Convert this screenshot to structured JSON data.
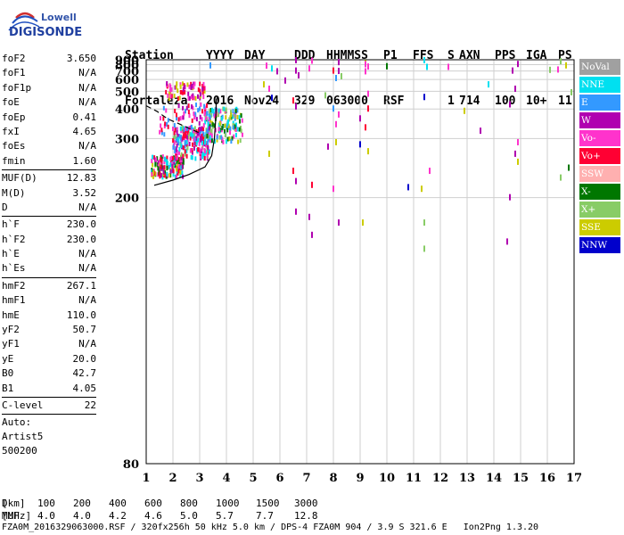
{
  "logo": {
    "line1": "Lowell",
    "line2": "DIGISONDE"
  },
  "header": {
    "row1": [
      "Station",
      "YYYY",
      "DAY",
      "DDD",
      "HHMMSS",
      "P1",
      "FFS",
      "S",
      "AXN",
      "PPS",
      "IGA",
      "PS"
    ],
    "row2": [
      "Fortaleza",
      "2016",
      "Nov24",
      "329",
      "063000",
      "RSF",
      "",
      "1",
      "714",
      "100",
      "10+",
      "11"
    ]
  },
  "params": [
    {
      "label": "foF2",
      "value": "3.650"
    },
    {
      "label": "foF1",
      "value": "N/A"
    },
    {
      "label": "foF1p",
      "value": "N/A"
    },
    {
      "label": "foE",
      "value": "N/A"
    },
    {
      "label": "foEp",
      "value": "0.41"
    },
    {
      "label": "fxI",
      "value": "4.65"
    },
    {
      "label": "foEs",
      "value": "N/A"
    },
    {
      "label": "fmin",
      "value": "1.60"
    },
    {
      "label": "MUF(D)",
      "value": "12.83",
      "sep": true
    },
    {
      "label": "M(D)",
      "value": "3.52"
    },
    {
      "label": "D",
      "value": "N/A"
    },
    {
      "label": "h`F",
      "value": "230.0",
      "sep": true
    },
    {
      "label": "h`F2",
      "value": "230.0"
    },
    {
      "label": "h`E",
      "value": "N/A"
    },
    {
      "label": "h`Es",
      "value": "N/A"
    },
    {
      "label": "hmF2",
      "value": "267.1",
      "sep": true
    },
    {
      "label": "hmF1",
      "value": "N/A"
    },
    {
      "label": "hmE",
      "value": "110.0"
    },
    {
      "label": "yF2",
      "value": "50.7"
    },
    {
      "label": "yF1",
      "value": "N/A"
    },
    {
      "label": "yE",
      "value": "20.0"
    },
    {
      "label": "B0",
      "value": "42.7"
    },
    {
      "label": "B1",
      "value": "4.05"
    },
    {
      "label": "C-level",
      "value": "22",
      "sep": true
    }
  ],
  "auto": [
    "Auto:",
    "Artist5",
    "500200"
  ],
  "legend": [
    {
      "label": "NoVal",
      "color": "#a0a0a0"
    },
    {
      "label": "NNE",
      "color": "#00e0f0"
    },
    {
      "label": "E",
      "color": "#3399ff"
    },
    {
      "label": "W",
      "color": "#b000b0"
    },
    {
      "label": "Vo-",
      "color": "#ff33cc"
    },
    {
      "label": "Vo+",
      "color": "#ff0033"
    },
    {
      "label": "SSW",
      "color": "#ffb0b0"
    },
    {
      "label": "X-",
      "color": "#007700"
    },
    {
      "label": "X+",
      "color": "#88cc66"
    },
    {
      "label": "SSE",
      "color": "#cccc00"
    },
    {
      "label": "NNW",
      "color": "#0000cc"
    }
  ],
  "chart_data": {
    "type": "scatter",
    "xlim": [
      1,
      17
    ],
    "ylim": [
      80,
      900
    ],
    "y_scale": "reciprocal",
    "xticks": [
      1,
      2,
      3,
      4,
      5,
      6,
      7,
      8,
      9,
      10,
      11,
      12,
      13,
      14,
      15,
      16,
      17
    ],
    "yticks": [
      80,
      200,
      300,
      400,
      500,
      600,
      700,
      800,
      900
    ],
    "grid": true,
    "traces": [
      {
        "name": "dashed",
        "style": "dashed",
        "points": [
          [
            1.0,
            415
          ],
          [
            1.4,
            390
          ],
          [
            1.8,
            360
          ],
          [
            2.3,
            340
          ],
          [
            2.7,
            325
          ],
          [
            3.0,
            315
          ]
        ]
      },
      {
        "name": "solid",
        "style": "solid",
        "points": [
          [
            1.3,
            215
          ],
          [
            2.0,
            222
          ],
          [
            2.6,
            230
          ],
          [
            3.2,
            242
          ],
          [
            3.45,
            262
          ],
          [
            3.55,
            300
          ],
          [
            3.6,
            360
          ],
          [
            3.62,
            440
          ],
          [
            3.65,
            460
          ]
        ]
      }
    ],
    "scatter_clusters": [
      {
        "x": [
          1.2,
          2.4
        ],
        "y": [
          225,
          260
        ],
        "colors": [
          "#ff0033",
          "#ff33cc",
          "#b000b0",
          "#00e0f0",
          "#007700",
          "#cccc00"
        ],
        "n": 160
      },
      {
        "x": [
          2.0,
          3.4
        ],
        "y": [
          255,
          330
        ],
        "colors": [
          "#ff0033",
          "#ff33cc",
          "#3399ff",
          "#00e0f0",
          "#88cc66",
          "#b000b0"
        ],
        "n": 200
      },
      {
        "x": [
          3.2,
          4.6
        ],
        "y": [
          290,
          400
        ],
        "colors": [
          "#3399ff",
          "#00e0f0",
          "#88cc66",
          "#cccc00",
          "#ff33cc",
          "#007700"
        ],
        "n": 160
      },
      {
        "x": [
          1.7,
          3.2
        ],
        "y": [
          450,
          560
        ],
        "colors": [
          "#ff0033",
          "#ff33cc",
          "#b000b0",
          "#cccc00"
        ],
        "n": 70
      },
      {
        "x": [
          1.5,
          3.4
        ],
        "y": [
          300,
          420
        ],
        "colors": [
          "#ff0033",
          "#ff33cc",
          "#b000b0",
          "#3399ff"
        ],
        "n": 70
      }
    ],
    "scatter_points": [
      {
        "x": 6.6,
        "y": 880,
        "color": "#b000b0"
      },
      {
        "x": 7.2,
        "y": 870,
        "color": "#ff33cc"
      },
      {
        "x": 8.2,
        "y": 840,
        "color": "#b000b0"
      },
      {
        "x": 9.2,
        "y": 820,
        "color": "#cccc00"
      },
      {
        "x": 11.4,
        "y": 880,
        "color": "#00e0f0"
      },
      {
        "x": 14.9,
        "y": 805,
        "color": "#b000b0"
      },
      {
        "x": 16.5,
        "y": 860,
        "color": "#88cc66"
      },
      {
        "x": 16.7,
        "y": 780,
        "color": "#cccc00"
      },
      {
        "x": 10.0,
        "y": 765,
        "color": "#007700"
      },
      {
        "x": 6.6,
        "y": 700,
        "color": "#b000b0"
      },
      {
        "x": 7.1,
        "y": 730,
        "color": "#ff33cc"
      },
      {
        "x": 8.0,
        "y": 700,
        "color": "#ff0033"
      },
      {
        "x": 9.3,
        "y": 760,
        "color": "#ff33cc"
      },
      {
        "x": 14.7,
        "y": 700,
        "color": "#b000b0"
      },
      {
        "x": 16.4,
        "y": 715,
        "color": "#ff33cc"
      },
      {
        "x": 6.7,
        "y": 640,
        "color": "#b000b0"
      },
      {
        "x": 8.1,
        "y": 610,
        "color": "#3399ff"
      },
      {
        "x": 6.2,
        "y": 585,
        "color": "#b000b0"
      },
      {
        "x": 5.4,
        "y": 550,
        "color": "#cccc00"
      },
      {
        "x": 13.8,
        "y": 550,
        "color": "#00e0f0"
      },
      {
        "x": 14.8,
        "y": 515,
        "color": "#b000b0"
      },
      {
        "x": 9.3,
        "y": 480,
        "color": "#ff33cc"
      },
      {
        "x": 16.9,
        "y": 490,
        "color": "#88cc66"
      },
      {
        "x": 5.7,
        "y": 455,
        "color": "#0000cc"
      },
      {
        "x": 11.4,
        "y": 460,
        "color": "#0000cc"
      },
      {
        "x": 6.5,
        "y": 440,
        "color": "#ff0033"
      },
      {
        "x": 7.7,
        "y": 470,
        "color": "#88cc66"
      },
      {
        "x": 14.6,
        "y": 420,
        "color": "#b000b0"
      },
      {
        "x": 6.6,
        "y": 410,
        "color": "#b000b0"
      },
      {
        "x": 8.0,
        "y": 400,
        "color": "#3399ff"
      },
      {
        "x": 9.3,
        "y": 400,
        "color": "#ff0033"
      },
      {
        "x": 12.9,
        "y": 390,
        "color": "#cccc00"
      },
      {
        "x": 8.2,
        "y": 375,
        "color": "#ff33cc"
      },
      {
        "x": 9.0,
        "y": 360,
        "color": "#b000b0"
      },
      {
        "x": 8.1,
        "y": 340,
        "color": "#ff33cc"
      },
      {
        "x": 13.5,
        "y": 320,
        "color": "#b000b0"
      },
      {
        "x": 9.2,
        "y": 330,
        "color": "#ff0033"
      },
      {
        "x": 14.9,
        "y": 290,
        "color": "#ff33cc"
      },
      {
        "x": 8.1,
        "y": 290,
        "color": "#cccc00"
      },
      {
        "x": 9.0,
        "y": 285,
        "color": "#0000cc"
      },
      {
        "x": 7.8,
        "y": 280,
        "color": "#b000b0"
      },
      {
        "x": 9.3,
        "y": 270,
        "color": "#cccc00"
      },
      {
        "x": 14.8,
        "y": 265,
        "color": "#b000b0"
      },
      {
        "x": 14.9,
        "y": 250,
        "color": "#cccc00"
      },
      {
        "x": 11.6,
        "y": 235,
        "color": "#ff33cc"
      },
      {
        "x": 6.5,
        "y": 235,
        "color": "#ff0033"
      },
      {
        "x": 6.6,
        "y": 220,
        "color": "#b000b0"
      },
      {
        "x": 7.2,
        "y": 215,
        "color": "#ff0033"
      },
      {
        "x": 8.0,
        "y": 210,
        "color": "#ff33cc"
      },
      {
        "x": 11.3,
        "y": 210,
        "color": "#cccc00"
      },
      {
        "x": 10.8,
        "y": 212,
        "color": "#0000cc"
      },
      {
        "x": 14.6,
        "y": 200,
        "color": "#b000b0"
      },
      {
        "x": 16.8,
        "y": 240,
        "color": "#007700"
      },
      {
        "x": 16.5,
        "y": 225,
        "color": "#88cc66"
      },
      {
        "x": 6.6,
        "y": 185,
        "color": "#b000b0"
      },
      {
        "x": 7.1,
        "y": 180,
        "color": "#b000b0"
      },
      {
        "x": 8.2,
        "y": 175,
        "color": "#b000b0"
      },
      {
        "x": 9.1,
        "y": 175,
        "color": "#cccc00"
      },
      {
        "x": 11.4,
        "y": 175,
        "color": "#88cc66"
      },
      {
        "x": 14.5,
        "y": 160,
        "color": "#b000b0"
      },
      {
        "x": 11.4,
        "y": 155,
        "color": "#88cc66"
      },
      {
        "x": 7.2,
        "y": 165,
        "color": "#b000b0"
      },
      {
        "x": 5.6,
        "y": 265,
        "color": "#cccc00"
      },
      {
        "x": 5.6,
        "y": 515,
        "color": "#ff33cc"
      },
      {
        "x": 3.4,
        "y": 780,
        "color": "#3399ff"
      },
      {
        "x": 5.5,
        "y": 775,
        "color": "#ff33cc"
      },
      {
        "x": 5.7,
        "y": 730,
        "color": "#00e0f0"
      },
      {
        "x": 5.9,
        "y": 690,
        "color": "#b000b0"
      },
      {
        "x": 9.2,
        "y": 800,
        "color": "#ff33cc"
      },
      {
        "x": 11.5,
        "y": 755,
        "color": "#00e0f0"
      },
      {
        "x": 12.3,
        "y": 755,
        "color": "#ff33cc"
      },
      {
        "x": 8.2,
        "y": 695,
        "color": "#b000b0"
      },
      {
        "x": 8.3,
        "y": 630,
        "color": "#88cc66"
      },
      {
        "x": 9.2,
        "y": 690,
        "color": "#ff33cc"
      },
      {
        "x": 16.1,
        "y": 710,
        "color": "#88cc66"
      }
    ],
    "distance_table": {
      "rows": [
        {
          "label": "D",
          "values": [
            "100",
            "200",
            "400",
            "600",
            "800",
            "1000",
            "1500",
            "3000"
          ],
          "unit": "[km]"
        },
        {
          "label": "MUF",
          "values": [
            "4.0",
            "4.0",
            "4.2",
            "4.6",
            "5.0",
            "5.7",
            "7.7",
            "12.8"
          ],
          "unit": "[MHz]"
        }
      ]
    }
  },
  "footer_line": "FZA0M_2016329063000.RSF / 320fx256h 50 kHz 5.0 km / DPS-4 FZA0M 904 / 3.9 S 321.6 E   Ion2Png 1.3.20"
}
